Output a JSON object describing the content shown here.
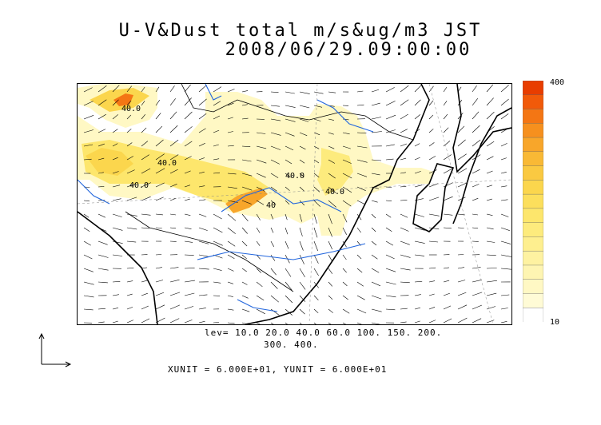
{
  "title_line1": "U-V&Dust total m/s&ug/m3 JST",
  "title_line2": "2008/06/29.09:00:00",
  "legend": {
    "max_label": "400",
    "min_label": "10",
    "colors": [
      "#e83d00",
      "#f15a0a",
      "#f47614",
      "#f6901e",
      "#f8a62a",
      "#f9b935",
      "#fac941",
      "#fbd64d",
      "#fcdf5c",
      "#fde66c",
      "#fdeb7d",
      "#feef8f",
      "#fef2a1",
      "#fef5b2",
      "#fff8c4",
      "#fffbd6",
      "#ffffff"
    ]
  },
  "contour_levels_text": "lev= 10.0 20.0 40.0 60.0 100. 150. 200.",
  "contour_levels_text2": "300. 400.",
  "contour_labels": [
    "40.0",
    "40.0",
    "40.0",
    "40.0",
    "40.0",
    "40"
  ],
  "units_text": "XUNIT = 6.000E+01, YUNIT = 6.000E+01",
  "icons": {
    "reference_vector": "axis-arrows-icon"
  }
}
